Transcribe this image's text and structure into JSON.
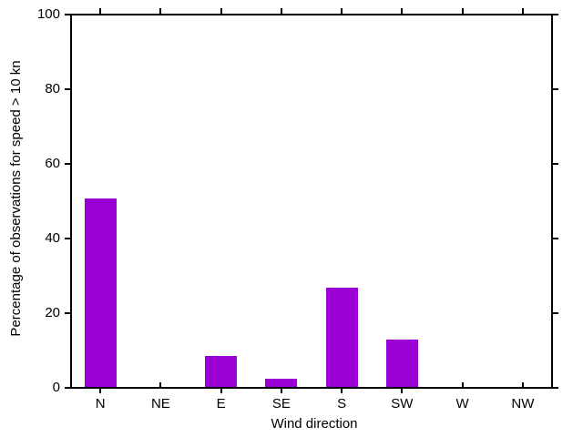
{
  "chart_data": {
    "type": "bar",
    "title": "",
    "xlabel": "Wind direction",
    "ylabel": "Percentage of observations for speed > 10 kn",
    "categories": [
      "N",
      "NE",
      "E",
      "SE",
      "S",
      "SW",
      "W",
      "NW"
    ],
    "values": [
      50.5,
      0,
      8.3,
      2.3,
      26.6,
      12.7,
      0,
      0
    ],
    "ylim": [
      0,
      100
    ],
    "yticks": [
      0,
      20,
      40,
      60,
      80,
      100
    ],
    "bar_color": "#9a00d3",
    "axis_color": "#000000",
    "background_color": "#ffffff",
    "grid": false,
    "legend_position": "none"
  }
}
